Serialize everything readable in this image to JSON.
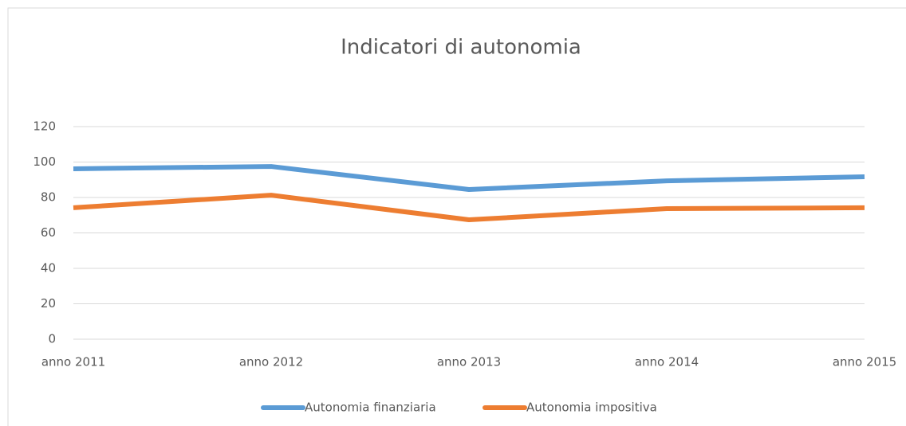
{
  "chart_data": {
    "type": "line",
    "title": "Indicatori di autonomia",
    "categories": [
      "anno 2011",
      "anno 2012",
      "anno 2013",
      "anno 2014",
      "anno 2015"
    ],
    "series": [
      {
        "name": "Autonomia finanziaria",
        "color": "#5b9bd5",
        "values": [
          96.2,
          97.5,
          84.5,
          89.4,
          91.7
        ]
      },
      {
        "name": "Autonomia impositiva",
        "color": "#ed7d31",
        "values": [
          74.2,
          81.3,
          67.4,
          73.7,
          74.2
        ]
      }
    ],
    "ylim": [
      0,
      120
    ],
    "yticks": [
      0,
      20,
      40,
      60,
      80,
      100,
      120
    ],
    "grid": true,
    "legend": "bottom"
  }
}
